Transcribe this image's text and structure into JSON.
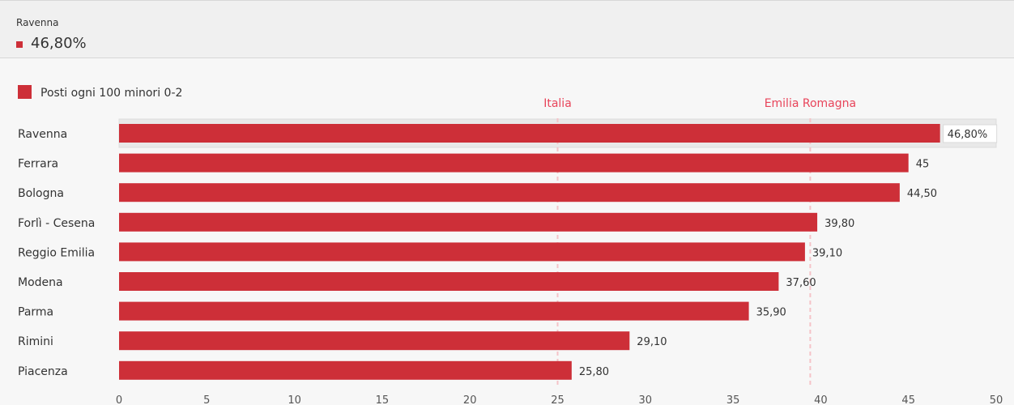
{
  "tooltip": {
    "name": "Ravenna",
    "value": "46,80%"
  },
  "chart_data": {
    "type": "bar",
    "orientation": "horizontal",
    "legend": {
      "position": "top-left",
      "entries": [
        "Posti ogni 100 minori 0-2"
      ]
    },
    "categories": [
      "Ravenna",
      "Ferrara",
      "Bologna",
      "Forlì - Cesena",
      "Reggio Emilia",
      "Modena",
      "Parma",
      "Rimini",
      "Piacenza"
    ],
    "series": [
      {
        "name": "Posti ogni 100 minori 0-2",
        "values": [
          46.8,
          45,
          44.5,
          39.8,
          39.1,
          37.6,
          35.9,
          29.1,
          25.8
        ],
        "labels": [
          "46,80%",
          "45",
          "44,50",
          "39,80",
          "39,10",
          "37,60",
          "35,90",
          "29,10",
          "25,80"
        ]
      }
    ],
    "reference_lines": [
      {
        "label": "Italia",
        "value": 25
      },
      {
        "label": "Emilia Romagna",
        "value": 39.4
      }
    ],
    "xlim": [
      0,
      50
    ],
    "xticks": [
      0,
      5,
      10,
      15,
      20,
      25,
      30,
      35,
      40,
      45,
      50
    ],
    "highlighted_category": "Ravenna",
    "grid": false,
    "colors": {
      "bar": "#cd2f38",
      "reference": "#e8445a",
      "reference_line": "#f5c3c8"
    }
  }
}
